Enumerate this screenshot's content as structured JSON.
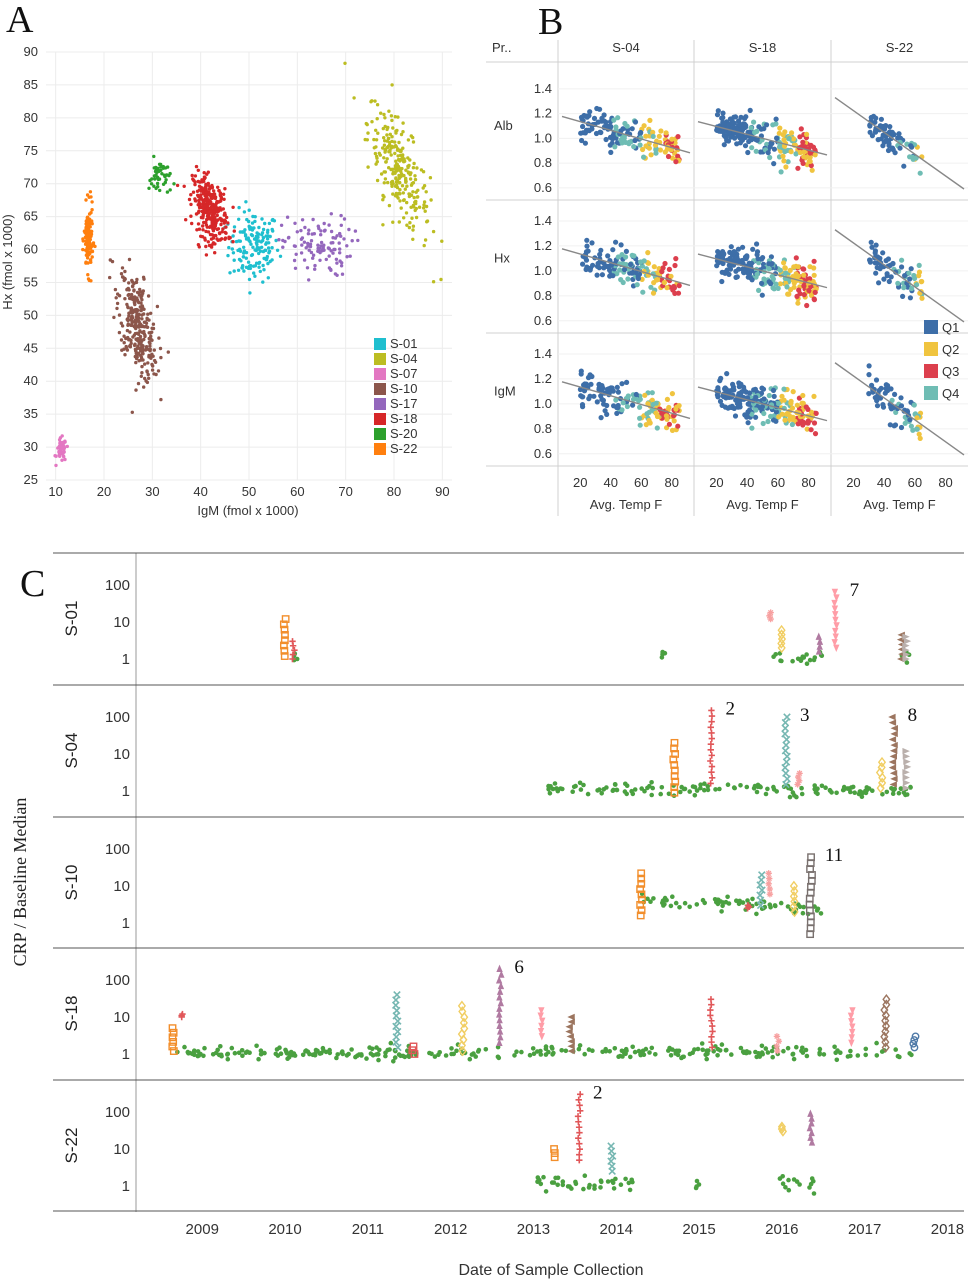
{
  "panels": {
    "a": "A",
    "b": "B",
    "c": "C"
  },
  "chart_data": [
    {
      "panel": "A",
      "type": "scatter",
      "xlabel": "IgM (fmol x 1000)",
      "ylabel": "Hx (fmol x 1000)",
      "xlim": [
        8,
        92
      ],
      "ylim": [
        25,
        90
      ],
      "xticks": [
        10,
        20,
        30,
        40,
        50,
        60,
        70,
        80,
        90
      ],
      "yticks": [
        25,
        30,
        35,
        40,
        45,
        50,
        55,
        60,
        65,
        70,
        75,
        80,
        85,
        90
      ],
      "grid": true,
      "legend_position": "bottom-right",
      "series": [
        {
          "name": "S-01",
          "color": "#1fbfcf",
          "n": 150,
          "cx": 51,
          "cy": 60.5,
          "sx": 2.6,
          "sy": 2.7,
          "slope": 0
        },
        {
          "name": "S-04",
          "color": "#bcbd22",
          "n": 260,
          "cx": 81,
          "cy": 72,
          "sx": 3.2,
          "sy": 3.5,
          "slope": -1.1
        },
        {
          "name": "S-07",
          "color": "#e377c2",
          "n": 45,
          "cx": 11.2,
          "cy": 29.5,
          "sx": 0.5,
          "sy": 0.9,
          "slope": 0
        },
        {
          "name": "S-10",
          "color": "#8c564b",
          "n": 300,
          "cx": 27,
          "cy": 48.5,
          "sx": 2.0,
          "sy": 3.6,
          "slope": -1.1
        },
        {
          "name": "S-17",
          "color": "#9467bd",
          "n": 110,
          "cx": 64,
          "cy": 60.5,
          "sx": 3.6,
          "sy": 2.3,
          "slope": 0
        },
        {
          "name": "S-18",
          "color": "#d62728",
          "n": 310,
          "cx": 42,
          "cy": 66,
          "sx": 1.8,
          "sy": 2.3,
          "slope": -0.5
        },
        {
          "name": "S-20",
          "color": "#2ca02c",
          "n": 45,
          "cx": 31.5,
          "cy": 71,
          "sx": 1.1,
          "sy": 1.4,
          "slope": 0
        },
        {
          "name": "S-22",
          "color": "#ff7f0e",
          "n": 130,
          "cx": 16.8,
          "cy": 61.5,
          "sx": 0.45,
          "sy": 2.5,
          "slope": 0
        }
      ]
    },
    {
      "panel": "B",
      "type": "scatter",
      "row_header": "Pr..",
      "columns": [
        "S-04",
        "S-18",
        "S-22"
      ],
      "rows": [
        "Alb",
        "Hx",
        "IgM"
      ],
      "xlabel": "Avg. Temp F",
      "xlim": [
        8,
        92
      ],
      "xticks": [
        20,
        40,
        60,
        80
      ],
      "ylim": [
        0.55,
        1.52
      ],
      "yticks": [
        "1.4",
        "1.2",
        "1.0",
        "0.8",
        "0.6"
      ],
      "legend": [
        {
          "name": "Q1",
          "color": "#3d6ea8"
        },
        {
          "name": "Q2",
          "color": "#f0c43f"
        },
        {
          "name": "Q3",
          "color": "#dc3f4d"
        },
        {
          "name": "Q4",
          "color": "#6fbdb4"
        }
      ],
      "trend_lines": [
        {
          "column": "S-04",
          "slope": -0.0035,
          "value_at_50": 1.03
        },
        {
          "column": "S-18",
          "slope": -0.0032,
          "value_at_50": 1.0
        },
        {
          "column": "S-22",
          "slope": -0.0088,
          "value_at_50": 0.96
        }
      ]
    },
    {
      "panel": "C",
      "type": "scatter",
      "ylabel": "CRP / Baseline Median",
      "xlabel": "Date of Sample Collection",
      "y_scale": "log",
      "yticks": [
        "100",
        "10",
        "1"
      ],
      "xlim": [
        2008.2,
        2018.2
      ],
      "xticks": [
        "2009",
        "2010",
        "2011",
        "2012",
        "2013",
        "2014",
        "2015",
        "2016",
        "2017",
        "2018"
      ],
      "rows": [
        {
          "name": "S-01",
          "baseline": [
            [
              2010.1,
              2010.15
            ],
            [
              2014.55,
              2014.6
            ],
            [
              2015.9,
              2016.5
            ],
            [
              2017.45,
              2017.55
            ]
          ],
          "spikes": [
            {
              "x": 2010.0,
              "max": 12,
              "min": 1.2,
              "marker": "square",
              "color": "#f28e2b"
            },
            {
              "x": 2010.1,
              "max": 3,
              "min": 1.0,
              "marker": "plus",
              "color": "#e15759"
            },
            {
              "x": 2015.85,
              "max": 18,
              "min": 12,
              "marker": "star",
              "color": "#f7a1a1"
            },
            {
              "x": 2016.0,
              "max": 6,
              "min": 2,
              "marker": "diamond",
              "color": "#f1ce63"
            },
            {
              "x": 2016.45,
              "max": 4,
              "min": 1.6,
              "marker": "triangle",
              "color": "#b07aa1"
            },
            {
              "x": 2016.65,
              "max": 65,
              "min": 2,
              "marker": "down-triangle",
              "color": "#ff9da7",
              "label": "7"
            },
            {
              "x": 2017.45,
              "max": 4.5,
              "min": 1.0,
              "marker": "left-triangle",
              "color": "#9c755f"
            },
            {
              "x": 2017.5,
              "max": 4,
              "min": 1.0,
              "marker": "right-triangle",
              "color": "#bab0ac"
            }
          ]
        },
        {
          "name": "S-04",
          "baseline": [
            [
              2013.15,
              2017.6
            ]
          ],
          "spikes": [
            {
              "x": 2014.7,
              "max": 20,
              "min": 0.9,
              "marker": "square",
              "color": "#f28e2b"
            },
            {
              "x": 2015.15,
              "max": 150,
              "min": 1.6,
              "marker": "plus",
              "color": "#e15759",
              "label": "2"
            },
            {
              "x": 2016.05,
              "max": 100,
              "min": 1.5,
              "marker": "x",
              "color": "#76b7b2",
              "label": "3"
            },
            {
              "x": 2016.2,
              "max": 3,
              "min": 1.5,
              "marker": "star",
              "color": "#f7a1a1"
            },
            {
              "x": 2017.2,
              "max": 6,
              "min": 1.2,
              "marker": "diamond",
              "color": "#f1ce63"
            },
            {
              "x": 2017.35,
              "max": 100,
              "min": 1.5,
              "marker": "left-triangle",
              "color": "#9c755f",
              "label": "8"
            },
            {
              "x": 2017.5,
              "max": 12,
              "min": 1.2,
              "marker": "right-triangle",
              "color": "#bab0ac"
            }
          ]
        },
        {
          "name": "S-10",
          "baseline": [
            [
              2014.3,
              2016.5
            ]
          ],
          "spikes": [
            {
              "x": 2014.3,
              "max": 22,
              "min": 1.6,
              "marker": "square",
              "color": "#f28e2b"
            },
            {
              "x": 2015.75,
              "max": 20,
              "min": 3,
              "marker": "x",
              "color": "#76b7b2"
            },
            {
              "x": 2015.85,
              "max": 22,
              "min": 6,
              "marker": "star",
              "color": "#f7a1a1"
            },
            {
              "x": 2015.6,
              "max": 3,
              "min": 2.5,
              "marker": "plus",
              "color": "#e15759"
            },
            {
              "x": 2016.15,
              "max": 10,
              "min": 2,
              "marker": "diamond",
              "color": "#f1ce63"
            },
            {
              "x": 2016.35,
              "max": 60,
              "min": 0.5,
              "marker": "square",
              "color": "#79706e",
              "label": "11"
            }
          ]
        },
        {
          "name": "S-18",
          "baseline": [
            [
              2008.7,
              2017.6
            ]
          ],
          "spikes": [
            {
              "x": 2008.65,
              "max": 5,
              "min": 1.2,
              "marker": "square",
              "color": "#f28e2b"
            },
            {
              "x": 2008.75,
              "max": 12,
              "min": 10,
              "marker": "plus",
              "color": "#e15759"
            },
            {
              "x": 2011.35,
              "max": 40,
              "min": 1.5,
              "marker": "x",
              "color": "#76b7b2"
            },
            {
              "x": 2011.55,
              "max": 1.6,
              "min": 1.0,
              "marker": "square",
              "color": "#e15759"
            },
            {
              "x": 2012.15,
              "max": 20,
              "min": 1.2,
              "marker": "diamond",
              "color": "#f1ce63"
            },
            {
              "x": 2012.6,
              "max": 200,
              "min": 2,
              "marker": "triangle",
              "color": "#b07aa1",
              "label": "6"
            },
            {
              "x": 2013.1,
              "max": 15,
              "min": 3,
              "marker": "down-triangle",
              "color": "#ff9da7"
            },
            {
              "x": 2013.45,
              "max": 10,
              "min": 1.2,
              "marker": "left-triangle",
              "color": "#9c755f"
            },
            {
              "x": 2015.15,
              "max": 30,
              "min": 1.5,
              "marker": "plus",
              "color": "#e15759"
            },
            {
              "x": 2015.95,
              "max": 3,
              "min": 1.2,
              "marker": "star",
              "color": "#f7a1a1"
            },
            {
              "x": 2016.85,
              "max": 15,
              "min": 2,
              "marker": "down-triangle",
              "color": "#ff9da7"
            },
            {
              "x": 2017.25,
              "max": 30,
              "min": 1.5,
              "marker": "diamond",
              "color": "#9c755f"
            },
            {
              "x": 2017.6,
              "max": 3,
              "min": 1.5,
              "marker": "circle",
              "color": "#4e79a7"
            }
          ]
        },
        {
          "name": "S-22",
          "baseline": [
            [
              2013.0,
              2014.2
            ],
            [
              2014.95,
              2015.0
            ],
            [
              2015.95,
              2016.4
            ]
          ],
          "spikes": [
            {
              "x": 2013.25,
              "max": 10,
              "min": 6,
              "marker": "square",
              "color": "#f28e2b"
            },
            {
              "x": 2013.55,
              "max": 300,
              "min": 5,
              "marker": "plus",
              "color": "#e15759",
              "label": "2"
            },
            {
              "x": 2013.95,
              "max": 12,
              "min": 2.5,
              "marker": "x",
              "color": "#76b7b2"
            },
            {
              "x": 2016.0,
              "max": 40,
              "min": 30,
              "marker": "diamond",
              "color": "#f1ce63"
            },
            {
              "x": 2016.35,
              "max": 90,
              "min": 15,
              "marker": "triangle",
              "color": "#b07aa1"
            }
          ]
        }
      ]
    }
  ]
}
